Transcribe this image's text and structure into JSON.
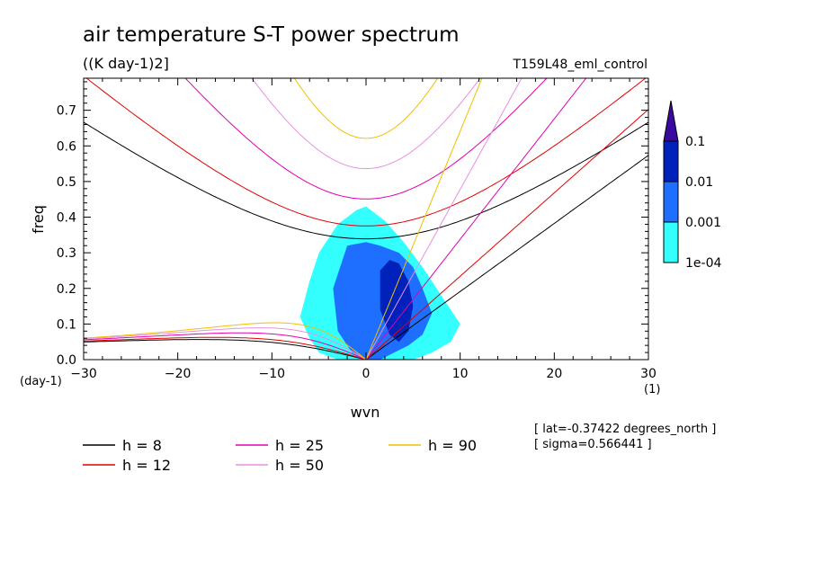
{
  "chart_data": {
    "type": "contour",
    "title": "air temperature S-T power spectrum",
    "units": "((K day-1)2]",
    "run_label": "T159L48_eml_control",
    "xlabel": "wvn",
    "ylabel": "freq",
    "xunit": "(1)",
    "yunit": "(day-1)",
    "xlim": [
      -30,
      30
    ],
    "ylim": [
      0,
      0.79
    ],
    "xticks": [
      -30,
      -20,
      -10,
      0,
      10,
      20,
      30
    ],
    "yticks": [
      0.0,
      0.1,
      0.2,
      0.3,
      0.4,
      0.5,
      0.6,
      0.7
    ],
    "colorbar": {
      "levels": [
        "1e-04",
        "0.001",
        "0.01",
        "0.1"
      ],
      "colors": [
        "#33ffff",
        "#1e6fff",
        "#0022bb",
        "#3a0aa0"
      ]
    },
    "filled_regions": [
      {
        "level": "1e-04",
        "x": [
          -1,
          -3,
          -5,
          -6,
          -7,
          -6,
          -5,
          -3,
          -1,
          1,
          3,
          5,
          7,
          9,
          10,
          8,
          6,
          4,
          2,
          0
        ],
        "y": [
          0.42,
          0.38,
          0.3,
          0.22,
          0.12,
          0.06,
          0.02,
          0.0,
          0.0,
          0.0,
          0.0,
          0.0,
          0.02,
          0.05,
          0.1,
          0.18,
          0.26,
          0.33,
          0.39,
          0.43
        ]
      },
      {
        "level": "0.001",
        "x": [
          -2,
          -3.5,
          -3,
          -1.5,
          0,
          1.5,
          3,
          4.5,
          6,
          7,
          6,
          5,
          3.5,
          1.5,
          0
        ],
        "y": [
          0.32,
          0.2,
          0.08,
          0.02,
          0.0,
          0.0,
          0.02,
          0.04,
          0.07,
          0.13,
          0.2,
          0.26,
          0.3,
          0.32,
          0.33
        ]
      },
      {
        "level": "0.01",
        "x": [
          1.5,
          2.5,
          3.5,
          4.5,
          5,
          4.5,
          3.5,
          2.5,
          1.5
        ],
        "y": [
          0.25,
          0.28,
          0.27,
          0.22,
          0.15,
          0.08,
          0.05,
          0.07,
          0.14
        ]
      }
    ],
    "dispersion_legend": [
      {
        "label": "h =  8",
        "color": "#000000"
      },
      {
        "label": "h = 12",
        "color": "#e00000"
      },
      {
        "label": "h = 25",
        "color": "#e000b0"
      },
      {
        "label": "h = 50",
        "color": "#e890e0"
      },
      {
        "label": "h = 90",
        "color": "#f0c000"
      }
    ],
    "annotations": [
      "[ lat=-0.37422 degrees_north ]",
      "[ sigma=0.566441 ]"
    ],
    "grid": false,
    "legend_position": "bottom"
  }
}
